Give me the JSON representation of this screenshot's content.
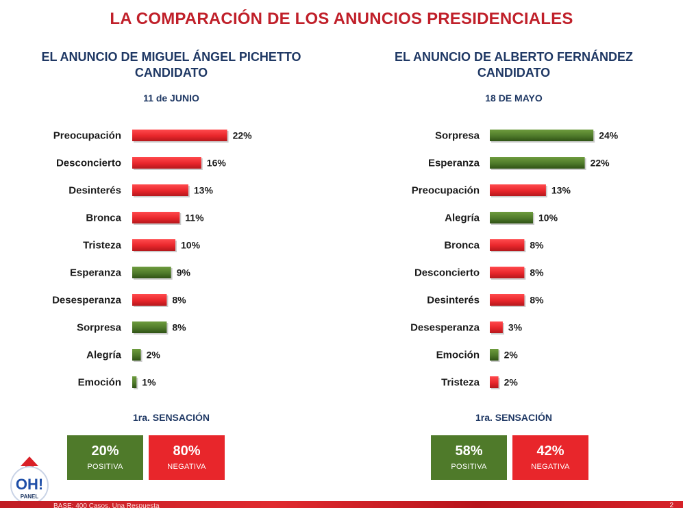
{
  "title": "LA COMPARACIÓN DE LOS ANUNCIOS PRESIDENCIALES",
  "left": {
    "heading_line1": "EL ANUNCIO DE MIGUEL ÁNGEL PICHETTO",
    "heading_line2": "CANDIDATO",
    "date": "11 de JUNIO",
    "sensacion_label": "1ra. SENSACIÓN",
    "positive_value": "20%",
    "positive_label": "POSITIVA",
    "negative_value": "80%",
    "negative_label": "NEGATIVA"
  },
  "right": {
    "heading_line1": "EL ANUNCIO DE ALBERTO FERNÁNDEZ",
    "heading_line2": "CANDIDATO",
    "date": "18 DE MAYO",
    "sensacion_label": "1ra. SENSACIÓN",
    "positive_value": "58%",
    "positive_label": "POSITIVA",
    "negative_value": "42%",
    "negative_label": "NEGATIVA"
  },
  "colors": {
    "positive": "#4f7a2a",
    "negative": "#e8262b",
    "title": "#c0202a",
    "heading": "#1f3864"
  },
  "chart_data": [
    {
      "type": "bar",
      "orientation": "horizontal",
      "categories": [
        "Preocupación",
        "Desconcierto",
        "Desinterés",
        "Bronca",
        "Tristeza",
        "Esperanza",
        "Desesperanza",
        "Sorpresa",
        "Alegría",
        "Emoción"
      ],
      "values": [
        22,
        16,
        13,
        11,
        10,
        9,
        8,
        8,
        2,
        1
      ],
      "data_labels": [
        "22%",
        "16%",
        "13%",
        "11%",
        "10%",
        "9%",
        "8%",
        "8%",
        "2%",
        "1%"
      ],
      "sentiment": [
        "negative",
        "negative",
        "negative",
        "negative",
        "negative",
        "positive",
        "negative",
        "positive",
        "positive",
        "positive"
      ],
      "unit": "%"
    },
    {
      "type": "bar",
      "orientation": "horizontal",
      "categories": [
        "Sorpresa",
        "Esperanza",
        "Preocupación",
        "Alegría",
        "Bronca",
        "Desconcierto",
        "Desinterés",
        "Desesperanza",
        "Emoción",
        "Tristeza"
      ],
      "values": [
        24,
        22,
        13,
        10,
        8,
        8,
        8,
        3,
        2,
        2
      ],
      "data_labels": [
        "24%",
        "22%",
        "13%",
        "10%",
        "8%",
        "8%",
        "8%",
        "3%",
        "2%",
        "2%"
      ],
      "sentiment": [
        "positive",
        "positive",
        "negative",
        "positive",
        "negative",
        "negative",
        "negative",
        "negative",
        "positive",
        "negative"
      ],
      "unit": "%"
    }
  ],
  "logo": {
    "text": "OH!",
    "subtext": "PANEL"
  },
  "footer": {
    "text": "BASE: 400 Casos. Una Respuesta",
    "page": "2"
  }
}
